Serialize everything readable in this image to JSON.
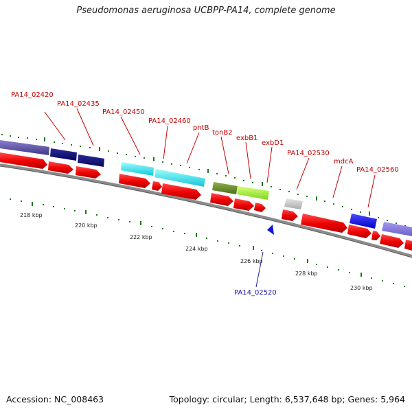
{
  "title": "Pseudomonas aeruginosa UCBPP-PA14, complete genome",
  "footer": {
    "accession": "Accession: NC_008463",
    "stats": "Topology: circular; Length: 6,537,648 bp; Genes: 5,964"
  },
  "gene_labels": [
    "PA14_02420",
    "PA14_02435",
    "PA14_02450",
    "PA14_02460",
    "pntB",
    "tonB2",
    "exbB1",
    "exbD1",
    "PA14_02530",
    "mdcA",
    "PA14_02560",
    "PA14_02520"
  ],
  "scale_labels": [
    "218 kbp",
    "220 kbp",
    "222 kbp",
    "224 kbp",
    "226 kbp",
    "228 kbp",
    "230 kbp"
  ],
  "colors": {
    "cds": "#ff0000",
    "backbone": "#8c8c8c",
    "tick": "#1a7a1a",
    "label_red": "#c40000",
    "label_blue": "#1a1aa6"
  }
}
